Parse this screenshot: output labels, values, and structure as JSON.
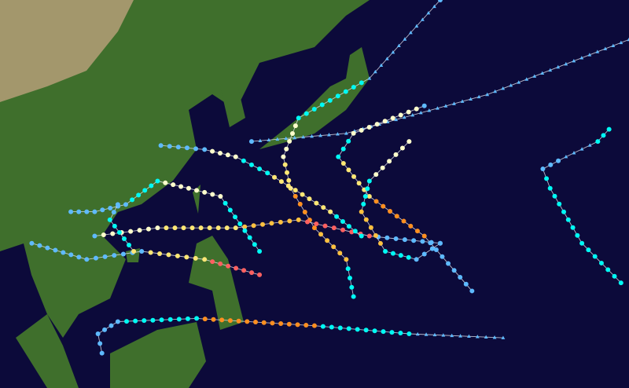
{
  "intensity_colors": {
    "TD": "#5ebaff",
    "TS": "#00faf4",
    "C1": "#ffffcc",
    "C2": "#ffe775",
    "C3": "#ffc140",
    "C4": "#ff8f20",
    "C5": "#ff6060",
    "EX": "#5ebaff"
  },
  "track_line_color": "#e6e6f0",
  "tracks": [
    {
      "points": [
        [
          138.4,
          13.3,
          "TS"
        ],
        [
          137.3,
          17.9,
          "C3"
        ],
        [
          132.5,
          21.8,
          "C4"
        ],
        [
          128.9,
          26.7,
          "C2"
        ],
        [
          127.8,
          30.6,
          "C1"
        ],
        [
          130.1,
          35.4,
          "TS"
        ],
        [
          140.8,
          40.3,
          "EX"
        ],
        [
          151.5,
          50,
          "EX"
        ]
      ]
    },
    {
      "points": [
        [
          161,
          8.2,
          "EX"
        ],
        [
          146.8,
          8.7,
          "TS"
        ],
        [
          132.5,
          9.7,
          "C4"
        ],
        [
          114.7,
          10.6,
          "TS"
        ],
        [
          102.8,
          10.2,
          "TD"
        ],
        [
          99.8,
          8.7,
          "TD"
        ],
        [
          100.4,
          6.3,
          "TD"
        ]
      ]
    },
    {
      "points": [
        [
          151.5,
          19.9,
          "TD"
        ],
        [
          140.8,
          20.8,
          "C5"
        ],
        [
          130.1,
          22.8,
          "C3"
        ],
        [
          120.6,
          21.8,
          "C2"
        ],
        [
          108.8,
          21.8,
          "C1"
        ],
        [
          99.3,
          20.8,
          "TD"
        ]
      ]
    },
    {
      "points": [
        [
          178.8,
          15,
          "TS"
        ],
        [
          172.9,
          19.9,
          "TS"
        ],
        [
          168.1,
          26.7,
          "TS"
        ],
        [
          167,
          29.1,
          "TD"
        ],
        [
          170.5,
          30.6,
          "EX"
        ],
        [
          175.3,
          32.5,
          "TS"
        ],
        [
          177,
          34,
          "TS"
        ]
      ]
    },
    {
      "points": [
        [
          180,
          45.1,
          "EX"
        ],
        [
          158.6,
          38.3,
          "EX"
        ],
        [
          137.3,
          33.5,
          "EX"
        ],
        [
          123,
          32.5,
          "EX"
        ]
      ]
    },
    {
      "points": [
        [
          156.3,
          14,
          "TD"
        ],
        [
          149.1,
          20.8,
          "C4"
        ],
        [
          140.8,
          25.7,
          "C2"
        ],
        [
          136.1,
          30.6,
          "TS"
        ],
        [
          138.4,
          33.5,
          "C1"
        ],
        [
          149.1,
          36.9,
          "EX"
        ]
      ]
    },
    {
      "points": [
        [
          124.2,
          18.9,
          "TS"
        ],
        [
          118.3,
          25.7,
          "C1"
        ],
        [
          113.5,
          26.7,
          "C1"
        ],
        [
          108.8,
          27.6,
          "TS"
        ],
        [
          104,
          24.7,
          "TD"
        ],
        [
          99.3,
          23.8,
          "TD"
        ],
        [
          95.7,
          23.8,
          "EX"
        ]
      ]
    },
    {
      "points": [
        [
          124.2,
          16,
          "C5"
        ],
        [
          115.9,
          17.9,
          "C2"
        ],
        [
          106.4,
          18.9,
          "TD"
        ],
        [
          98.1,
          17.9,
          "TD"
        ],
        [
          89.8,
          19.9,
          "EX"
        ]
      ]
    },
    {
      "points": [
        [
          139.6,
          20.8,
          "TS"
        ],
        [
          134.9,
          23.8,
          "C2"
        ],
        [
          125.4,
          28.6,
          "TS"
        ],
        [
          120.6,
          30.6,
          "C1"
        ],
        [
          115.9,
          31.5,
          "TD"
        ],
        [
          109.3,
          32,
          "TD"
        ]
      ]
    },
    {
      "points": [
        [
          146.8,
          32.5,
          "C1"
        ],
        [
          140.8,
          27.6,
          "TS"
        ],
        [
          139.6,
          23.8,
          "C3"
        ],
        [
          143.2,
          18.9,
          "TS"
        ],
        [
          147.9,
          17.9,
          "TD"
        ],
        [
          151.5,
          19.9,
          "EX"
        ]
      ]
    },
    {
      "points": [
        [
          102.8,
          24.7,
          "TD"
        ],
        [
          101.6,
          22.8,
          "TS"
        ],
        [
          105.2,
          18.9,
          "C2"
        ]
      ]
    }
  ]
}
